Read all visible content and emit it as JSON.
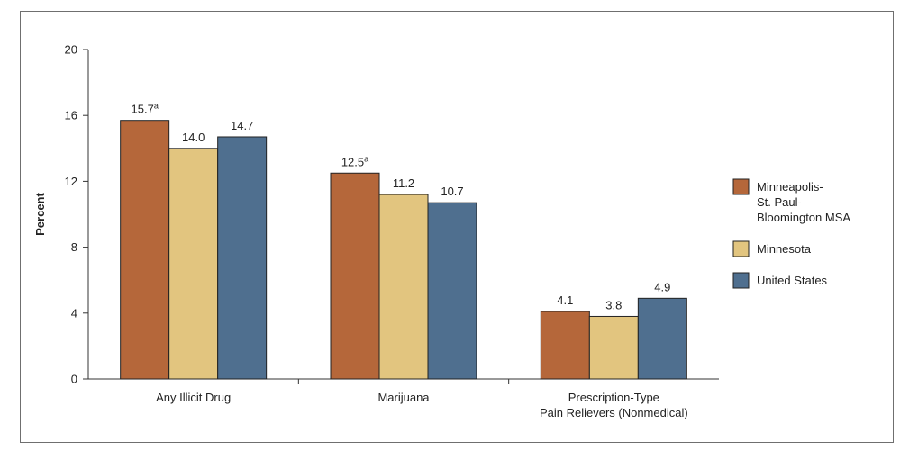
{
  "chart_data": {
    "type": "bar",
    "ylabel": "Percent",
    "ylim": [
      0,
      20
    ],
    "yticks": [
      0,
      4,
      8,
      12,
      16,
      20
    ],
    "categories": [
      [
        "Any Illicit Drug"
      ],
      [
        "Marijuana"
      ],
      [
        "Prescription-Type",
        "Pain Relievers (Nonmedical)"
      ]
    ],
    "series": [
      {
        "name": "Minneapolis-St. Paul-Bloomington MSA",
        "legend_lines": [
          "Minneapolis-",
          "St. Paul-",
          "Bloomington MSA"
        ],
        "color": "#b5673a",
        "values": [
          15.7,
          12.5,
          4.1
        ],
        "labels": [
          "15.7",
          "12.5",
          "4.1"
        ],
        "superscripts": [
          "a",
          "a",
          ""
        ]
      },
      {
        "name": "Minnesota",
        "legend_lines": [
          "Minnesota"
        ],
        "color": "#e2c57f",
        "values": [
          14.0,
          11.2,
          3.8
        ],
        "labels": [
          "14.0",
          "11.2",
          "3.8"
        ],
        "superscripts": [
          "",
          "",
          ""
        ]
      },
      {
        "name": "United States",
        "legend_lines": [
          "United States"
        ],
        "color": "#4f6f8f",
        "values": [
          14.7,
          10.7,
          4.9
        ],
        "labels": [
          "14.7",
          "10.7",
          "4.9"
        ],
        "superscripts": [
          "",
          "",
          ""
        ]
      }
    ],
    "legend_position": "right",
    "grid": false
  }
}
